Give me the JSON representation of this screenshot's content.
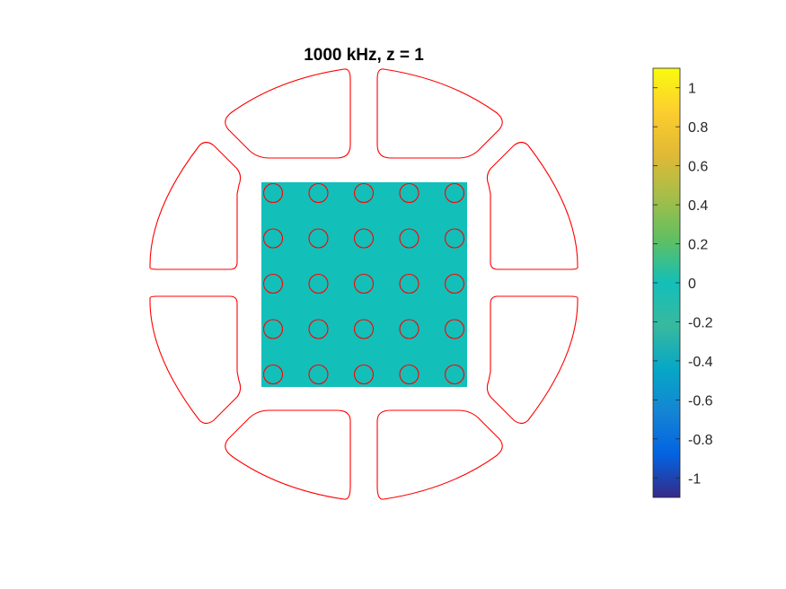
{
  "chart_data": {
    "type": "heatmap",
    "title": "1000 kHz, z = 1",
    "colormap": "parula",
    "field_value": 0,
    "field_color": "#13bfb9",
    "outline_color": "#ff0000",
    "grid_rows": 5,
    "grid_cols": 5,
    "sector_count": 8,
    "colorbar": {
      "limits": [
        -1.1,
        1.1
      ],
      "ticks": [
        1,
        0.8,
        0.6,
        0.4,
        0.2,
        0,
        -0.2,
        -0.4,
        -0.6,
        -0.8,
        -1
      ],
      "tick_labels": [
        "1",
        "0.8",
        "0.6",
        "0.4",
        "0.2",
        "0",
        "-0.2",
        "-0.4",
        "-0.6",
        "-0.8",
        "-1"
      ]
    }
  }
}
